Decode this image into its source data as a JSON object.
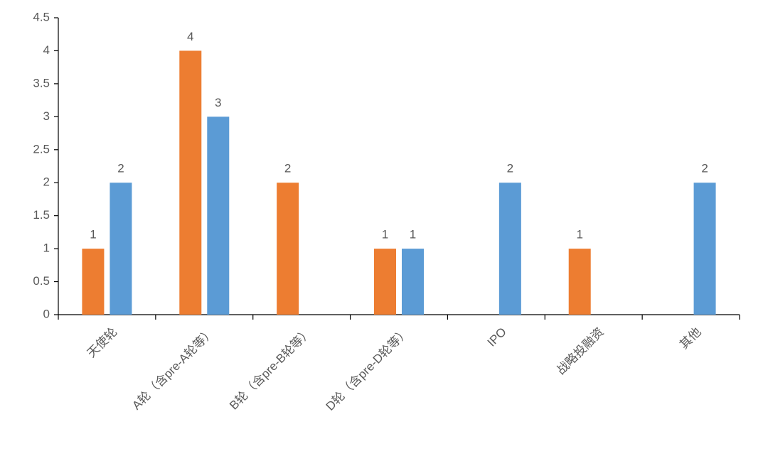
{
  "chart_data": {
    "type": "bar",
    "categories": [
      "天使轮",
      "A轮（含pre-A轮等）",
      "B轮（含pre-B轮等）",
      "D轮（含pre-D轮等）",
      "IPO",
      "战略投融资",
      "其他"
    ],
    "series": [
      {
        "color": "#ed7d31",
        "values": [
          1,
          4,
          2,
          1,
          null,
          1,
          null
        ]
      },
      {
        "color": "#5b9bd5",
        "values": [
          2,
          3,
          null,
          1,
          2,
          null,
          2
        ]
      }
    ],
    "ylim": [
      0,
      4.5
    ],
    "yticks": [
      0,
      0.5,
      1,
      1.5,
      2,
      2.5,
      3,
      3.5,
      4,
      4.5
    ]
  }
}
